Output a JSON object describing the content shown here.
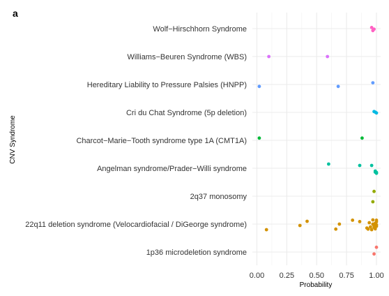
{
  "panel_tag": "a",
  "chart_data": {
    "type": "scatter",
    "xlabel": "Probability",
    "ylabel": "CNV Syndrome",
    "xlim": [
      0,
      1
    ],
    "x_ticks": [
      "0.00",
      "0.25",
      "0.50",
      "0.75",
      "1.00"
    ],
    "grid": true,
    "legend": "none",
    "categories": [
      "Wolf−Hirschhorn Syndrome",
      "Williams−Beuren Syndrome (WBS)",
      "Hereditary Liability to Pressure Palsies (HNPP)",
      "Cri du Chat Syndrome (5p deletion)",
      "Charcot−Marie−Tooth syndrome type 1A (CMT1A)",
      "Angelman syndrome/Prader−Willi syndrome",
      "2q37 monosomy",
      "22q11 deletion syndrome (Velocardiofacial / DiGeorge syndrome)",
      "1p36 microdeletion syndrome"
    ],
    "colors": [
      "#ff61c3",
      "#db72fb",
      "#619cff",
      "#00b9e3",
      "#00ba38",
      "#00c19f",
      "#93aa00",
      "#d39200",
      "#f8766d"
    ],
    "series": [
      {
        "category": "Wolf−Hirschhorn Syndrome",
        "points": [
          [
            0.97,
            0.07
          ],
          [
            0.96,
            -0.04
          ],
          [
            0.98,
            0.02
          ]
        ]
      },
      {
        "category": "Williams−Beuren Syndrome (WBS)",
        "points": [
          [
            0.1,
            0.0
          ],
          [
            0.59,
            0.0
          ]
        ]
      },
      {
        "category": "Hereditary Liability to Pressure Palsies (HNPP)",
        "points": [
          [
            0.02,
            0.07
          ],
          [
            0.68,
            0.07
          ],
          [
            0.97,
            -0.06
          ]
        ]
      },
      {
        "category": "Cri du Chat Syndrome (5p deletion)",
        "points": [
          [
            0.98,
            -0.03
          ],
          [
            1.0,
            0.02
          ],
          [
            0.99,
            -0.01
          ]
        ]
      },
      {
        "category": "Charcot−Marie−Tooth syndrome type 1A (CMT1A)",
        "points": [
          [
            0.02,
            -0.08
          ],
          [
            0.88,
            -0.08
          ]
        ]
      },
      {
        "category": "Angelman syndrome/Prader−Willi syndrome",
        "points": [
          [
            0.6,
            -0.15
          ],
          [
            0.86,
            -0.1
          ],
          [
            0.96,
            -0.1
          ],
          [
            0.99,
            0.1
          ],
          [
            1.0,
            0.15
          ],
          [
            0.99,
            0.14
          ],
          [
            1.0,
            0.18
          ]
        ]
      },
      {
        "category": "2q37 monosomy",
        "points": [
          [
            0.97,
            0.2
          ],
          [
            0.98,
            -0.17
          ]
        ]
      },
      {
        "category": "22q11 deletion syndrome (Velocardiofacial / DiGeorge syndrome)",
        "points": [
          [
            0.08,
            0.2
          ],
          [
            0.36,
            0.05
          ],
          [
            0.42,
            -0.1
          ],
          [
            0.66,
            0.18
          ],
          [
            0.69,
            0.0
          ],
          [
            0.8,
            -0.14
          ],
          [
            0.86,
            -0.09
          ],
          [
            0.92,
            0.14
          ],
          [
            0.93,
            0.18
          ],
          [
            0.94,
            -0.05
          ],
          [
            0.95,
            0.1
          ],
          [
            0.96,
            0.2
          ],
          [
            0.97,
            -0.15
          ],
          [
            0.97,
            0.0
          ],
          [
            0.98,
            0.12
          ],
          [
            0.98,
            0.06
          ],
          [
            0.99,
            -0.03
          ],
          [
            0.99,
            0.17
          ],
          [
            1.0,
            0.08
          ],
          [
            1.0,
            -0.08
          ],
          [
            1.0,
            0.03
          ],
          [
            1.0,
            -0.14
          ]
        ]
      },
      {
        "category": "1p36 microdeletion syndrome",
        "points": [
          [
            0.98,
            0.07
          ],
          [
            1.0,
            -0.17
          ]
        ]
      }
    ]
  }
}
